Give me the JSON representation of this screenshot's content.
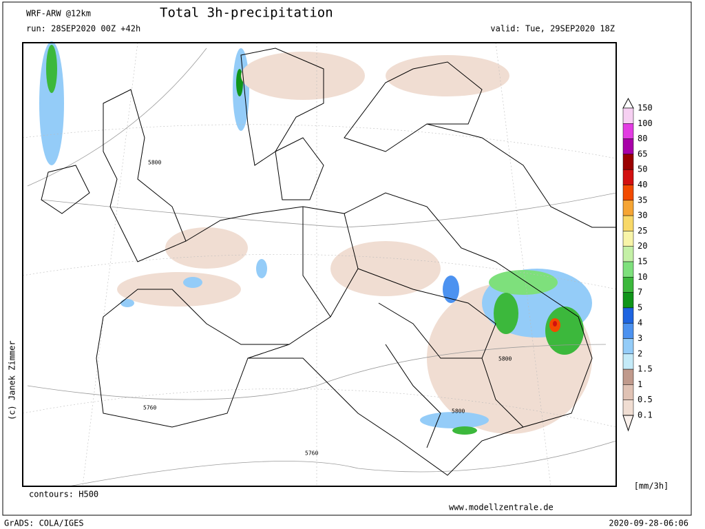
{
  "header": {
    "model": "WRF-ARW @12km",
    "title": "Total 3h-precipitation",
    "run": "run: 28SEP2020 00Z +42h",
    "valid": "valid: Tue, 29SEP2020 18Z"
  },
  "map": {
    "contour_labels": [
      "5800",
      "5800",
      "5800",
      "5760",
      "5760"
    ]
  },
  "legend": {
    "unit": "[mm/3h]",
    "items": [
      {
        "label": 150,
        "color": "#f6d0f2"
      },
      {
        "label": 100,
        "color": "#e23ce2"
      },
      {
        "label": 80,
        "color": "#a800a8"
      },
      {
        "label": 65,
        "color": "#9a0000"
      },
      {
        "label": 50,
        "color": "#d21010"
      },
      {
        "label": 40,
        "color": "#f24a00"
      },
      {
        "label": 35,
        "color": "#f5a434"
      },
      {
        "label": 30,
        "color": "#f8d868"
      },
      {
        "label": 25,
        "color": "#f8f4a8"
      },
      {
        "label": 20,
        "color": "#c4f0a6"
      },
      {
        "label": 15,
        "color": "#7ee07c"
      },
      {
        "label": 10,
        "color": "#3cb83c"
      },
      {
        "label": 7,
        "color": "#10951a"
      },
      {
        "label": 5,
        "color": "#1e64e0"
      },
      {
        "label": 4,
        "color": "#4c92f0"
      },
      {
        "label": 3,
        "color": "#94ccf8"
      },
      {
        "label": 2,
        "color": "#c4eaf8"
      },
      {
        "label": 1.5,
        "color": "#c09a8c"
      },
      {
        "label": 1,
        "color": "#e0c2b4"
      },
      {
        "label": 0.5,
        "color": "#f0ddd2"
      },
      {
        "label": 0.1,
        "color": "#faf1ec"
      }
    ]
  },
  "footer": {
    "contours": "contours: H500",
    "website": "www.modellzentrale.de",
    "software": "GrADS: COLA/IGES",
    "timestamp": "2020-09-28-06:06",
    "copyright": "(c) Janek Zimmer"
  }
}
